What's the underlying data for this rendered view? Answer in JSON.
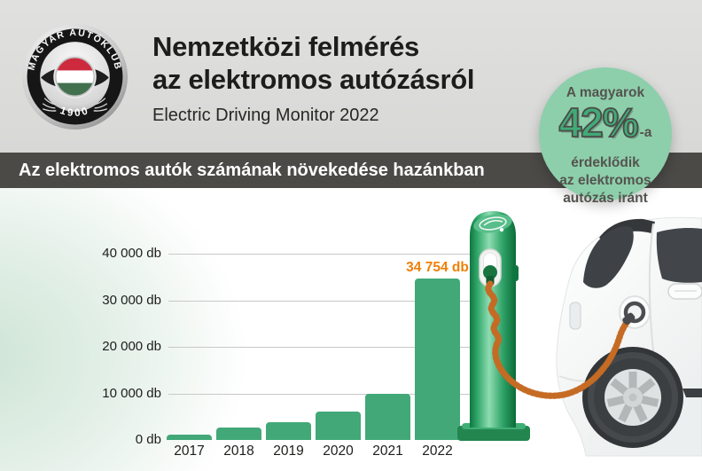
{
  "header": {
    "logo": {
      "name": "magyar-autoklub-logo",
      "ring_text": "MAGYAR AUTÓKLUB",
      "year": "1900",
      "flag_colors": [
        "#cd2a3e",
        "#ffffff",
        "#43704f"
      ]
    },
    "title_line1": "Nemzetközi felmérés",
    "title_line2": "az elektromos autózásról",
    "subtitle": "Electric Driving Monitor 2022"
  },
  "badge": {
    "line1": "A magyarok",
    "value": "42%",
    "suffix": "-a",
    "line2": "érdeklődik",
    "line3": "az elektromos",
    "line4": "autózás iránt",
    "bg_color": "#8dcfab",
    "value_color": "#41aa78",
    "text_color": "#55534f"
  },
  "section_bar": {
    "title": "Az elektromos autók számának növekedése hazánkban",
    "bg_color": "#4b4a47",
    "text_color": "#ffffff"
  },
  "chart_data": {
    "type": "bar",
    "title": "Az elektromos autók számának növekedése hazánkban",
    "categories": [
      "2017",
      "2018",
      "2019",
      "2020",
      "2021",
      "2022"
    ],
    "values": [
      1200,
      2600,
      3800,
      6100,
      10000,
      34754
    ],
    "unit": "db",
    "ylabel": "db",
    "ylim": [
      0,
      40000
    ],
    "grid": true,
    "legend": false,
    "y_ticks": [
      {
        "label": "40 000 db",
        "value": 40000
      },
      {
        "label": "30 000 db",
        "value": 30000
      },
      {
        "label": "20 000 db",
        "value": 20000
      },
      {
        "label": "10 000 db",
        "value": 10000
      },
      {
        "label": "0 db",
        "value": 0
      }
    ],
    "bar_color": "#42a878",
    "value_label": {
      "category": "2022",
      "text": "34 754 db",
      "color": "#ee8008"
    }
  },
  "illustration": {
    "description": "electric car charging at green charging station",
    "station_color": "#2fa267",
    "cable_color": "#e08036",
    "car_color": "#f7f8f8"
  }
}
